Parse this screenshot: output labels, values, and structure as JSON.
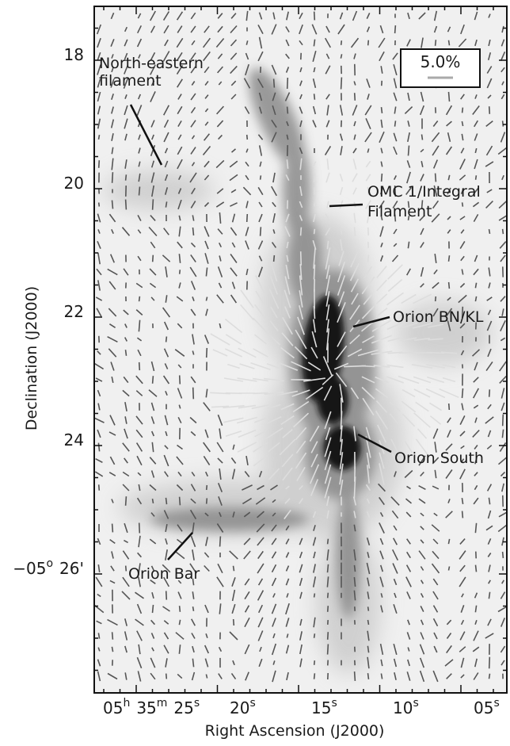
{
  "chart_data": {
    "type": "polarization vector map",
    "title": "",
    "xlabel": "Right Ascension (J2000)",
    "ylabel": "Declination (J2000)",
    "x_ticks": [
      {
        "h": "05",
        "m": "35",
        "s": "25",
        "sec": 25
      },
      {
        "s": "20",
        "sec": 20
      },
      {
        "s": "15",
        "sec": 15
      },
      {
        "s": "10",
        "sec": 10
      },
      {
        "s": "05",
        "sec": 5
      }
    ],
    "y_ticks": [
      {
        "label": "18",
        "arcmin": 18
      },
      {
        "label": "20",
        "arcmin": 20
      },
      {
        "label": "22",
        "arcmin": 22
      },
      {
        "label": "24",
        "arcmin": 24
      },
      {
        "deg": "−05",
        "label": "26'",
        "arcmin": 26
      }
    ],
    "xlim_sec": [
      28.5,
      2.0
    ],
    "ylim_arcmin": [
      17.2,
      27.95
    ],
    "scale_bar": {
      "label": "5.0%",
      "percent": 5.0
    },
    "annotations": [
      {
        "text": [
          "North-eastern",
          "filament"
        ],
        "ra_sec": 24.8,
        "dec_arcmin": 19.85
      },
      {
        "text": [
          "OMC 1/Integral",
          "Filament"
        ],
        "ra_sec": 14.3,
        "dec_arcmin": 20.45
      },
      {
        "text": [
          "Orion BN/KL"
        ],
        "ra_sec": 13.7,
        "dec_arcmin": 22.55
      },
      {
        "text": [
          "Orion South"
        ],
        "ra_sec": 13.2,
        "dec_arcmin": 23.95
      },
      {
        "text": [
          "Orion Bar"
        ],
        "ra_sec": 22.8,
        "dec_arcmin": 25.4
      }
    ],
    "colors": {
      "vector_dark": "#555555",
      "vector_light": "#dddddd",
      "emission": "#1a1a1a"
    }
  }
}
